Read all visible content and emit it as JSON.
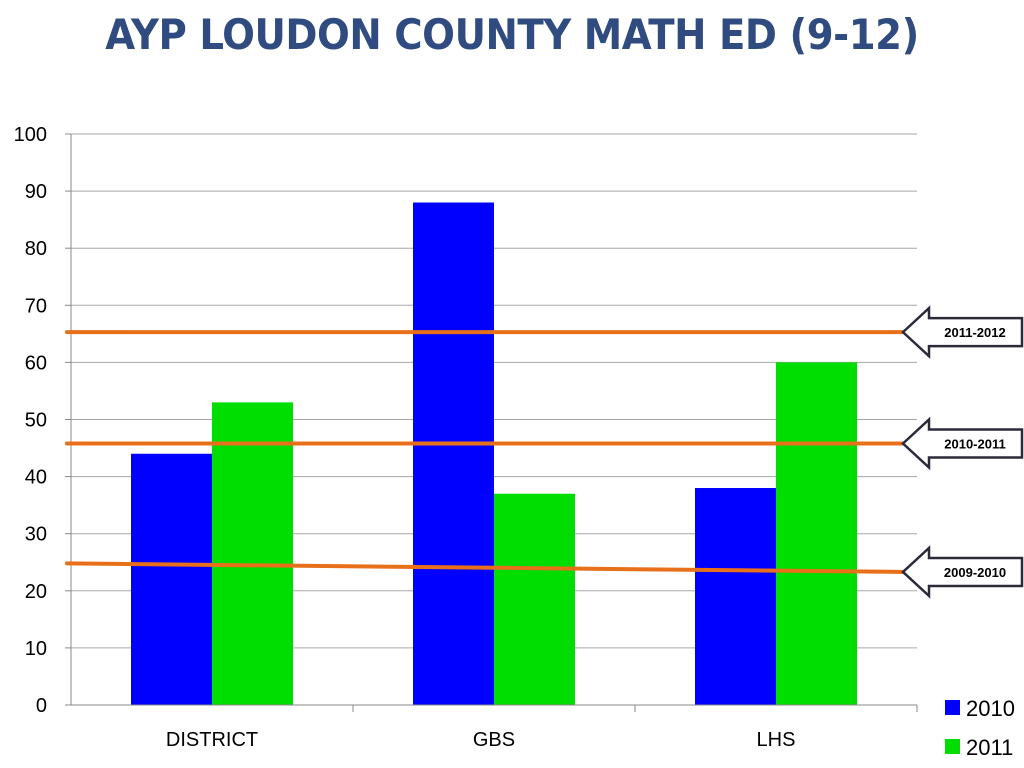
{
  "title": "AYP LOUDON COUNTY MATH ED (9-12)",
  "chart_data": {
    "type": "bar",
    "categories": [
      "DISTRICT",
      "GBS",
      "LHS"
    ],
    "series": [
      {
        "name": "2010",
        "values": [
          44,
          88,
          38
        ],
        "color": "#0000ff"
      },
      {
        "name": "2011",
        "values": [
          53,
          37,
          60
        ],
        "color": "#00dd00"
      }
    ],
    "ylim": [
      0,
      100
    ],
    "yticks": [
      0,
      10,
      20,
      30,
      40,
      50,
      60,
      70,
      80,
      90,
      100
    ],
    "grid": true,
    "legend_position": "bottom-right",
    "reference_lines": [
      {
        "label": "2011-2012",
        "y_start": 65.3,
        "y_end": 65.3,
        "color": "#e8701a"
      },
      {
        "label": "2010-2011",
        "y_start": 45.8,
        "y_end": 45.8,
        "color": "#e8701a"
      },
      {
        "label": "2009-2010",
        "y_start": 24.8,
        "y_end": 23.3,
        "color": "#e8701a"
      }
    ]
  }
}
